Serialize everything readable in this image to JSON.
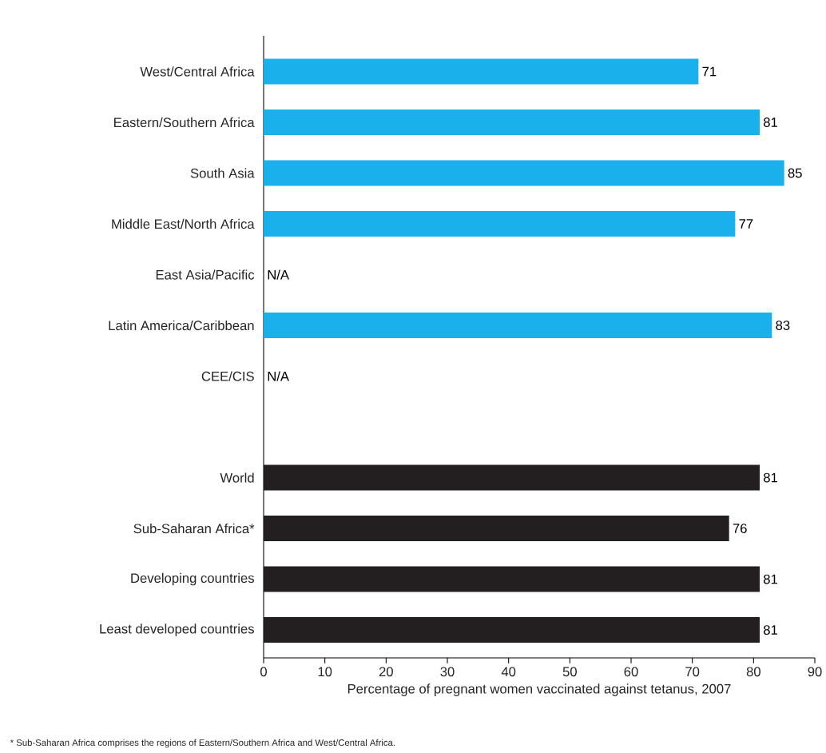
{
  "chart_data": {
    "type": "bar",
    "orientation": "horizontal",
    "xlabel": "Percentage of pregnant women vaccinated against tetanus, 2007",
    "categories": [
      "West/Central Africa",
      "Eastern/Southern Africa",
      "South Asia",
      "Middle East/North Africa",
      "East Asia/Pacific",
      "Latin America/Caribbean",
      "CEE/CIS",
      null,
      "World",
      "Sub-Saharan Africa*",
      "Developing countries",
      "Least developed countries"
    ],
    "values": [
      71,
      81,
      85,
      77,
      null,
      83,
      null,
      null,
      81,
      76,
      81,
      81
    ],
    "colors": [
      "#1ab0ec",
      "#1ab0ec",
      "#1ab0ec",
      "#1ab0ec",
      null,
      "#1ab0ec",
      null,
      null,
      "#231f20",
      "#231f20",
      "#231f20",
      "#231f20"
    ],
    "value_labels": [
      "71",
      "81",
      "85",
      "77",
      "N/A",
      "83",
      "N/A",
      null,
      "81",
      "76",
      "81",
      "81"
    ],
    "xlim": [
      0,
      90
    ],
    "xticks": [
      0,
      10,
      20,
      30,
      40,
      50,
      60,
      70,
      80,
      90
    ],
    "annotations": [
      "* Sub-Saharan Africa comprises the regions of Eastern/Southern Africa and West/Central Africa."
    ]
  }
}
